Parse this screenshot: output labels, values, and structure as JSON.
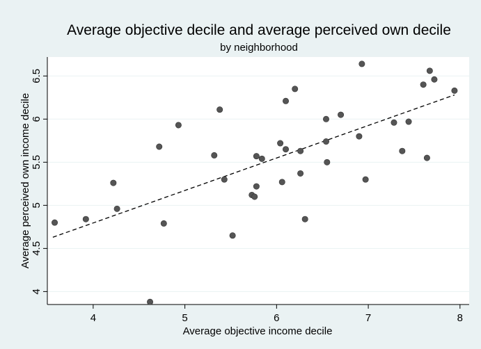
{
  "chart_data": {
    "type": "scatter",
    "title": "Average objective decile and average perceived own decile",
    "subtitle": "by neighborhood",
    "xlabel": "Average objective income decile",
    "ylabel": "Average perceived own income decile",
    "xlim": [
      3.5,
      8.1
    ],
    "ylim": [
      3.85,
      6.72
    ],
    "x_ticks": [
      "4",
      "5",
      "6",
      "7",
      "8"
    ],
    "y_ticks": [
      "4",
      "4.5",
      "5",
      "5.5",
      "6",
      "6.5"
    ],
    "grid": "horizontal",
    "legend": "none",
    "point_color": "#555555",
    "background_color": "#eaf2f3",
    "plot_background_color": "#ffffff",
    "points": [
      {
        "x": 3.58,
        "y": 4.8
      },
      {
        "x": 3.92,
        "y": 4.84
      },
      {
        "x": 4.22,
        "y": 5.26
      },
      {
        "x": 4.26,
        "y": 4.96
      },
      {
        "x": 4.62,
        "y": 3.88
      },
      {
        "x": 4.72,
        "y": 5.68
      },
      {
        "x": 4.77,
        "y": 4.79
      },
      {
        "x": 4.93,
        "y": 5.93
      },
      {
        "x": 5.32,
        "y": 5.58
      },
      {
        "x": 5.38,
        "y": 6.11
      },
      {
        "x": 5.43,
        "y": 5.3
      },
      {
        "x": 5.52,
        "y": 4.65
      },
      {
        "x": 5.73,
        "y": 5.12
      },
      {
        "x": 5.76,
        "y": 5.1
      },
      {
        "x": 5.78,
        "y": 5.57
      },
      {
        "x": 5.78,
        "y": 5.22
      },
      {
        "x": 5.84,
        "y": 5.54
      },
      {
        "x": 6.04,
        "y": 5.72
      },
      {
        "x": 6.06,
        "y": 5.27
      },
      {
        "x": 6.1,
        "y": 6.21
      },
      {
        "x": 6.1,
        "y": 5.65
      },
      {
        "x": 6.2,
        "y": 6.35
      },
      {
        "x": 6.26,
        "y": 5.63
      },
      {
        "x": 6.26,
        "y": 5.37
      },
      {
        "x": 6.31,
        "y": 4.84
      },
      {
        "x": 6.54,
        "y": 6.0
      },
      {
        "x": 6.54,
        "y": 5.74
      },
      {
        "x": 6.55,
        "y": 5.5
      },
      {
        "x": 6.7,
        "y": 6.05
      },
      {
        "x": 6.9,
        "y": 5.8
      },
      {
        "x": 6.93,
        "y": 6.64
      },
      {
        "x": 6.97,
        "y": 5.3
      },
      {
        "x": 7.28,
        "y": 5.96
      },
      {
        "x": 7.37,
        "y": 5.63
      },
      {
        "x": 7.44,
        "y": 5.97
      },
      {
        "x": 7.6,
        "y": 6.4
      },
      {
        "x": 7.64,
        "y": 5.55
      },
      {
        "x": 7.67,
        "y": 6.56
      },
      {
        "x": 7.72,
        "y": 6.46
      },
      {
        "x": 7.94,
        "y": 6.33
      }
    ],
    "fit_line": {
      "x": [
        3.56,
        7.94
      ],
      "y": [
        4.63,
        6.28
      ]
    }
  }
}
